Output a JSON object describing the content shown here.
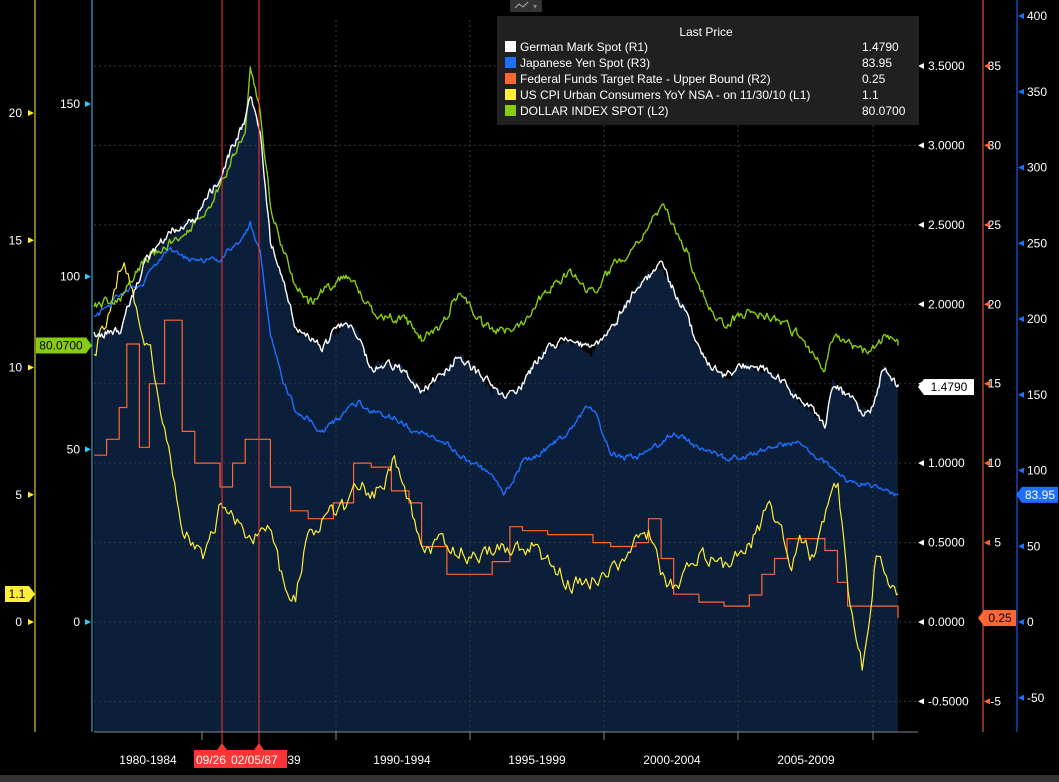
{
  "chart_data": {
    "type": "line",
    "legend": {
      "title": "Last Price",
      "entries": [
        {
          "name": "German Mark Spot  (R1)",
          "last": "1.4790",
          "color": "#ffffff"
        },
        {
          "name": "Japanese Yen Spot  (R3)",
          "last": "83.95",
          "color": "#1f6fff"
        },
        {
          "name": "Federal Funds Target Rate - Upper Bound  (R2)",
          "last": "0.25",
          "color": "#ff6633"
        },
        {
          "name": "US CPI Urban Consumers YoY NSA -  on 11/30/10  (L1)",
          "last": "1.1",
          "color": "#ffee33"
        },
        {
          "name": "DOLLAR INDEX SPOT  (L2)",
          "last": "80.0700",
          "color": "#88cc11"
        }
      ]
    },
    "x_labels": [
      "1980-1984",
      "1990-1994",
      "1995-1999",
      "2000-2004",
      "2005-2009"
    ],
    "x_partial_label": "39",
    "event_markers": [
      "09/26",
      "02/05/87"
    ],
    "axes": {
      "L1": {
        "ticks": [
          20,
          15,
          10,
          5,
          0
        ],
        "color": "#ffee33",
        "last_label": "1.1"
      },
      "L2": {
        "ticks": [
          150,
          100,
          50,
          0
        ],
        "color": "#33ccff",
        "last_label": "80.0700"
      },
      "R1": {
        "ticks": [
          "3.5000",
          "3.0000",
          "2.5000",
          "2.0000",
          "1.5000",
          "1.0000",
          "0.5000",
          "0.0000",
          "-0.5000"
        ],
        "color": "#ffffff",
        "last_label": "1.4790"
      },
      "R2": {
        "ticks": [
          35,
          30,
          25,
          20,
          15,
          10,
          5,
          0,
          -5
        ],
        "color": "#ff6633",
        "last_label": "0.25"
      },
      "R3": {
        "ticks": [
          400,
          350,
          300,
          250,
          200,
          150,
          100,
          50,
          0,
          -50
        ],
        "color": "#1f6fff",
        "last_label": "83.95"
      }
    },
    "series": [
      {
        "name": "DOLLAR INDEX SPOT  (L2)",
        "axis": "L2",
        "color": "#88cc11",
        "x": [
          1979.0,
          1980.0,
          1981.0,
          1982.0,
          1983.0,
          1984.0,
          1984.5,
          1985.0,
          1985.2,
          1985.6,
          1986.0,
          1986.5,
          1987.0,
          1987.5,
          1988.0,
          1989.0,
          1989.5,
          1990.0,
          1991.0,
          1991.5,
          1992.0,
          1992.7,
          1993.5,
          1994.5,
          1995.3,
          1996.0,
          1997.0,
          1998.0,
          1998.7,
          1999.5,
          2000.5,
          2001.5,
          2002.0,
          2002.5,
          2003.0,
          2004.0,
          2005.0,
          2006.0,
          2007.0,
          2008.0,
          2008.3,
          2009.0,
          2009.8,
          2010.3,
          2010.9
        ],
        "y": [
          92,
          93,
          105,
          110,
          116,
          125,
          135,
          143,
          160,
          148,
          120,
          108,
          98,
          92,
          95,
          101,
          96,
          90,
          88,
          86,
          82,
          85,
          96,
          85,
          84,
          87,
          97,
          101,
          95,
          102,
          110,
          120,
          115,
          108,
          96,
          86,
          90,
          88,
          83,
          73,
          82,
          80,
          78,
          82,
          80.07
        ]
      },
      {
        "name": "German Mark Spot  (R1)",
        "axis": "R1",
        "color": "#ffffff",
        "x": [
          1979.0,
          1980.0,
          1981.0,
          1982.0,
          1983.0,
          1984.0,
          1984.5,
          1985.0,
          1985.2,
          1985.6,
          1986.0,
          1986.5,
          1987.0,
          1987.5,
          1988.0,
          1989.0,
          1989.5,
          1990.0,
          1991.0,
          1991.5,
          1992.0,
          1992.7,
          1993.5,
          1994.5,
          1995.3,
          1996.0,
          1997.0,
          1998.0,
          1998.7,
          1999.5,
          2000.5,
          2001.5,
          2002.0,
          2002.5,
          2003.0,
          2004.0,
          2005.0,
          2006.0,
          2007.0,
          2008.0,
          2008.3,
          2009.0,
          2009.8,
          2010.3,
          2010.9
        ],
        "y": [
          1.82,
          1.83,
          2.25,
          2.45,
          2.55,
          2.8,
          3.0,
          3.15,
          3.3,
          3.1,
          2.4,
          2.15,
          1.85,
          1.8,
          1.72,
          1.9,
          1.8,
          1.6,
          1.62,
          1.55,
          1.45,
          1.55,
          1.68,
          1.52,
          1.4,
          1.5,
          1.75,
          1.78,
          1.7,
          1.85,
          2.1,
          2.25,
          2.1,
          1.95,
          1.7,
          1.55,
          1.62,
          1.55,
          1.4,
          1.25,
          1.5,
          1.4,
          1.3,
          1.6,
          1.479
        ]
      },
      {
        "name": "Japanese Yen Spot  (R3)",
        "axis": "R3",
        "color": "#1f6fff",
        "x": [
          1979.0,
          1980.0,
          1981.0,
          1982.0,
          1983.0,
          1984.0,
          1984.5,
          1985.0,
          1985.2,
          1985.6,
          1986.0,
          1986.5,
          1987.0,
          1987.5,
          1988.0,
          1989.0,
          1989.5,
          1990.0,
          1991.0,
          1991.5,
          1992.0,
          1992.7,
          1993.5,
          1994.5,
          1995.3,
          1996.0,
          1997.0,
          1998.0,
          1998.7,
          1999.5,
          2000.5,
          2001.5,
          2002.0,
          2002.5,
          2003.0,
          2004.0,
          2005.0,
          2006.0,
          2007.0,
          2008.0,
          2008.3,
          2009.0,
          2009.8,
          2010.3,
          2010.9
        ],
        "y": [
          200,
          215,
          225,
          245,
          238,
          240,
          248,
          255,
          262,
          245,
          190,
          160,
          140,
          135,
          125,
          138,
          145,
          140,
          135,
          128,
          125,
          122,
          110,
          100,
          85,
          105,
          115,
          128,
          145,
          110,
          108,
          118,
          125,
          120,
          115,
          108,
          110,
          117,
          118,
          105,
          100,
          92,
          90,
          88,
          83.95
        ]
      },
      {
        "name": "Federal Funds Target Rate - Upper Bound  (R2)",
        "axis": "R2",
        "color": "#ff6633",
        "x": [
          1979.0,
          1979.5,
          1980.0,
          1980.3,
          1980.8,
          1981.2,
          1981.8,
          1982.5,
          1983.0,
          1984.0,
          1984.5,
          1985.0,
          1986.0,
          1986.8,
          1987.5,
          1988.5,
          1989.3,
          1990.0,
          1990.8,
          1991.5,
          1992.0,
          1993.0,
          1994.0,
          1994.8,
          1995.5,
          1996.0,
          1997.0,
          1998.0,
          1998.8,
          1999.5,
          2000.5,
          2001.0,
          2001.5,
          2002.0,
          2003.0,
          2004.0,
          2004.5,
          2005.0,
          2005.5,
          2006.0,
          2006.5,
          2007.0,
          2007.5,
          2008.0,
          2008.5,
          2008.9,
          2010.9
        ],
        "y": [
          10.5,
          11.5,
          13.5,
          17.5,
          11,
          15,
          19,
          12,
          10,
          8.5,
          10,
          11.5,
          8.5,
          7,
          6.5,
          7.5,
          10,
          9.75,
          8.25,
          7.5,
          4.75,
          3,
          3,
          3.8,
          6,
          5.75,
          5.5,
          5.5,
          5,
          4.75,
          5,
          6.5,
          4,
          1.75,
          1.25,
          1,
          1,
          1.7,
          3,
          4,
          5.25,
          5.25,
          5.25,
          4.5,
          2.5,
          1,
          0.25
        ]
      },
      {
        "name": "US CPI Urban Consumers YoY NSA -  on 11/30/10  (L1)",
        "axis": "L1",
        "color": "#ffee33",
        "x": [
          1979.0,
          1979.7,
          1980.2,
          1980.8,
          1981.3,
          1982.0,
          1982.5,
          1982.9,
          1983.3,
          1984.0,
          1984.5,
          1985.0,
          1985.5,
          1986.0,
          1986.5,
          1987.0,
          1987.5,
          1988.0,
          1989.0,
          1989.5,
          1990.0,
          1990.5,
          1990.9,
          1991.5,
          1992.0,
          1993.0,
          1994.0,
          1995.0,
          1996.0,
          1996.5,
          1997.0,
          1998.0,
          1998.7,
          1999.2,
          2000.0,
          2000.5,
          2001.0,
          2001.7,
          2002.0,
          2003.0,
          2004.0,
          2005.0,
          2005.8,
          2006.3,
          2006.7,
          2007.0,
          2007.5,
          2008.0,
          2008.5,
          2009.0,
          2009.5,
          2010.0,
          2010.3,
          2010.6,
          2010.9
        ],
        "y": [
          10.5,
          12.5,
          14.5,
          12,
          10.5,
          6.5,
          4,
          3.2,
          2.5,
          4.5,
          4,
          3.6,
          3.5,
          3.7,
          1.5,
          1.1,
          3.5,
          4,
          4.5,
          5.5,
          5,
          5.5,
          6.3,
          4.8,
          3.1,
          3,
          2.7,
          2.9,
          2.9,
          3.2,
          2.3,
          1.5,
          1.6,
          2,
          2.2,
          3.5,
          3.5,
          1.5,
          1.3,
          2.5,
          2.3,
          3,
          4.5,
          3.5,
          2.2,
          3.5,
          2.5,
          4.2,
          5.5,
          0.5,
          -2,
          2.5,
          2.2,
          1.2,
          1.1
        ]
      }
    ]
  }
}
